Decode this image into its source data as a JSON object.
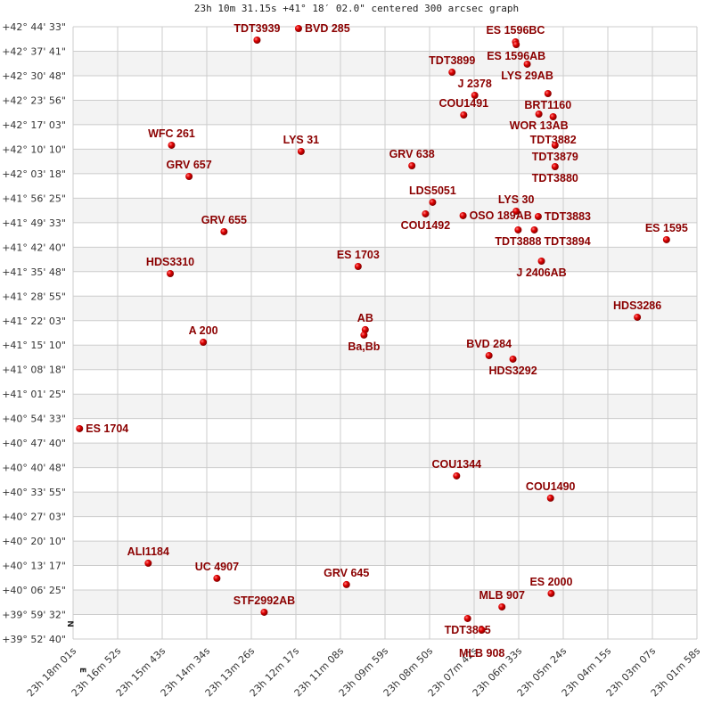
{
  "chart_data": {
    "type": "scatter",
    "title": "23h 10m 31.15s +41° 18′ 02.0\" centered 300 arcsec graph",
    "xlabel": "",
    "ylabel": "",
    "x_axis": "right ascension (increasing to the left)",
    "xlim": [
      "23h 18m 01s",
      "23h 01m 58s"
    ],
    "ylim": [
      "+39° 52' 40\"",
      "+42° 44' 33\""
    ],
    "grid": true,
    "alternating_row_bands": true,
    "compass": {
      "north": "N",
      "east": "E"
    },
    "colors": {
      "star": "#dd0000",
      "label": "#8b0000",
      "grid": "#cccccc",
      "band": "#f3f3f3"
    },
    "x_ticks": [
      "23h 18m 01s",
      "23h 16m 52s",
      "23h 15m 43s",
      "23h 14m 34s",
      "23h 13m 26s",
      "23h 12m 17s",
      "23h 11m 08s",
      "23h 09m 59s",
      "23h 08m 50s",
      "23h 07m 42s",
      "23h 06m 33s",
      "23h 05m 24s",
      "23h 04m 15s",
      "23h 03m 07s",
      "23h 01m 58s"
    ],
    "y_ticks": [
      "+42° 44' 33\"",
      "+42° 37' 41\"",
      "+42° 30' 48\"",
      "+42° 23' 56\"",
      "+42° 17' 03\"",
      "+42° 10' 10\"",
      "+42° 03' 18\"",
      "+41° 56' 25\"",
      "+41° 49' 33\"",
      "+41° 42' 40\"",
      "+41° 35' 48\"",
      "+41° 28' 55\"",
      "+41° 22' 03\"",
      "+41° 15' 10\"",
      "+41° 08' 18\"",
      "+41° 01' 25\"",
      "+40° 54' 33\"",
      "+40° 47' 40\"",
      "+40° 40' 48\"",
      "+40° 33' 55\"",
      "+40° 27' 03\"",
      "+40° 20' 10\"",
      "+40° 13' 17\"",
      "+40° 06' 25\"",
      "+39° 59' 32\"",
      "+39° 52' 40\""
    ],
    "points": [
      {
        "name": "TDT3939",
        "ra": "23h13m17s",
        "dec": "+42°40'48\""
      },
      {
        "name": "BVD 285",
        "ra": "23h12m13s",
        "dec": "+42°44'03\""
      },
      {
        "name": "ES 1596BC",
        "ra": "23h06m38s",
        "dec": "+42°40'18\""
      },
      {
        "name": "ES 1596AB",
        "ra": "23h06m37s",
        "dec": "+42°39'33\""
      },
      {
        "name": "LYS  29AB",
        "ra": "23h06m20s",
        "dec": "+42°34'03\""
      },
      {
        "name": "TDT3899",
        "ra": "23h08m16s",
        "dec": "+42°31'47\""
      },
      {
        "name": "J  2378",
        "ra": "23h07m41s",
        "dec": "+42°25'17\""
      },
      {
        "name": "BRT1160",
        "ra": "23h05m48s",
        "dec": "+42°25'47\""
      },
      {
        "name": "COU1491",
        "ra": "23h07m58s",
        "dec": "+42°19'47\""
      },
      {
        "name": "WOR  13AB",
        "ra": "23h06m02s",
        "dec": "+42°20'02\""
      },
      {
        "name": "TDT3882",
        "ra": "23h05m40s",
        "dec": "+42°19'17\""
      },
      {
        "name": "TDT3879",
        "ra": "23h05m37s",
        "dec": "+42°11'17\""
      },
      {
        "name": "WFC 261",
        "ra": "23h15m29s",
        "dec": "+42°11'17\""
      },
      {
        "name": "LYS  31",
        "ra": "23h12m09s",
        "dec": "+42°09'32\""
      },
      {
        "name": "GRV 638",
        "ra": "23h09m18s",
        "dec": "+42°05'31\""
      },
      {
        "name": "TDT3880",
        "ra": "23h05m37s",
        "dec": "+42°05'16\""
      },
      {
        "name": "GRV 657",
        "ra": "23h15m02s",
        "dec": "+42°02'31\""
      },
      {
        "name": "LDS5051",
        "ra": "23h08m46s",
        "dec": "+41°55'16\""
      },
      {
        "name": "COU1492",
        "ra": "23h08m57s",
        "dec": "+41°52'01\""
      },
      {
        "name": "OSO 189AB",
        "ra": "23h07m59s",
        "dec": "+41°51'31\""
      },
      {
        "name": "LYS  30",
        "ra": "23h06m37s",
        "dec": "+41°52'46\""
      },
      {
        "name": "TDT3883",
        "ra": "23h06m03s",
        "dec": "+41°51'16\""
      },
      {
        "name": "TDT3888",
        "ra": "23h06m34s",
        "dec": "+41°47'31\""
      },
      {
        "name": "TDT3894",
        "ra": "23h06m09s",
        "dec": "+41°47'31\""
      },
      {
        "name": "GRV 655",
        "ra": "23h14m08s",
        "dec": "+41°47'01\""
      },
      {
        "name": "ES 1595",
        "ra": "23h02m45s",
        "dec": "+41°44'46\""
      },
      {
        "name": "J  2406AB",
        "ra": "23h05m58s",
        "dec": "+41°38'45\""
      },
      {
        "name": "ES 1703",
        "ra": "23h10m41s",
        "dec": "+41°37'15\""
      },
      {
        "name": "HDS3310",
        "ra": "23h15m31s",
        "dec": "+41°35'15\""
      },
      {
        "name": "HDS3286",
        "ra": "23h03m30s",
        "dec": "+41°23'00\""
      },
      {
        "name": "AB",
        "ra": "23h10m30s",
        "dec": "+41°19'30\""
      },
      {
        "name": "Ba,Bb",
        "ra": "23h10m32s",
        "dec": "+41°18'00\""
      },
      {
        "name": "A   200",
        "ra": "23h14m40s",
        "dec": "+41°15'59\""
      },
      {
        "name": "BVD 284",
        "ra": "23h07m19s",
        "dec": "+41°12'14\""
      },
      {
        "name": "HDS3292",
        "ra": "23h06m42s",
        "dec": "+41°11'14\""
      },
      {
        "name": "ES 1704",
        "ra": "23h17m51s",
        "dec": "+40°51'43\""
      },
      {
        "name": "COU1344",
        "ra": "23h08m09s",
        "dec": "+40°38'28\""
      },
      {
        "name": "COU1490",
        "ra": "23h05m44s",
        "dec": "+40°32'13\""
      },
      {
        "name": "ALI1184",
        "ra": "23h16m05s",
        "dec": "+40°13'57\""
      },
      {
        "name": "UC 4907",
        "ra": "23h14m19s",
        "dec": "+40°09'42\""
      },
      {
        "name": "GRV 645",
        "ra": "23h10m59s",
        "dec": "+40°07'57\""
      },
      {
        "name": "ES 2000",
        "ra": "23h05m43s",
        "dec": "+40°05'27\""
      },
      {
        "name": "MLB 907",
        "ra": "23h06m59s",
        "dec": "+40°01'41\""
      },
      {
        "name": "STF2992AB",
        "ra": "23h13m06s",
        "dec": "+40°00'11\""
      },
      {
        "name": "TDT3895",
        "ra": "23h07m52s",
        "dec": "+39°58'26\""
      },
      {
        "name": "MLB 908",
        "ra": "23h07m30s",
        "dec": "+39°55'11\""
      }
    ]
  }
}
